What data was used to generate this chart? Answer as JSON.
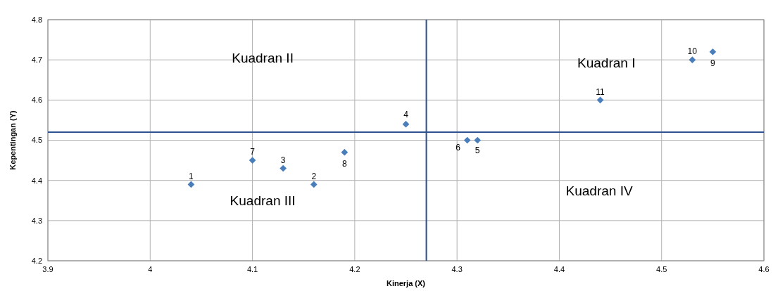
{
  "chart_data": {
    "type": "scatter",
    "xlabel": "Kinerja (X)",
    "ylabel": "Kepentingan (Y)",
    "x": [
      4.04,
      4.16,
      4.13,
      4.25,
      4.32,
      4.31,
      4.1,
      4.19,
      4.55,
      4.53,
      4.44
    ],
    "series": [
      {
        "color": "#4a7ebb",
        "values": [
          4.39,
          4.39,
          4.43,
          4.54,
          4.5,
          4.5,
          4.45,
          4.47,
          4.72,
          4.7,
          4.6
        ]
      }
    ],
    "value_labels": [
      "1",
      "2",
      "3",
      "4",
      "5",
      "6",
      "7",
      "8",
      "9",
      "10",
      "11"
    ],
    "xlim": [
      3.9,
      4.6
    ],
    "xticks": [
      3.9,
      4,
      4.1,
      4.2,
      4.3,
      4.4,
      4.5,
      4.6
    ],
    "ylim": [
      4.2,
      4.8
    ],
    "yticks": [
      4.2,
      4.3,
      4.4,
      4.5,
      4.6,
      4.7,
      4.8
    ],
    "grid": true,
    "marker": "diamond",
    "ref_lines": [
      {
        "axis": "x",
        "value": 4.27,
        "color": "#2e528f"
      },
      {
        "axis": "y",
        "value": 4.52,
        "color": "#2e528f"
      }
    ],
    "annotations": [
      "Kuadran II",
      "Kuadran I",
      "Kuadran III",
      "Kuadran IV"
    ]
  }
}
